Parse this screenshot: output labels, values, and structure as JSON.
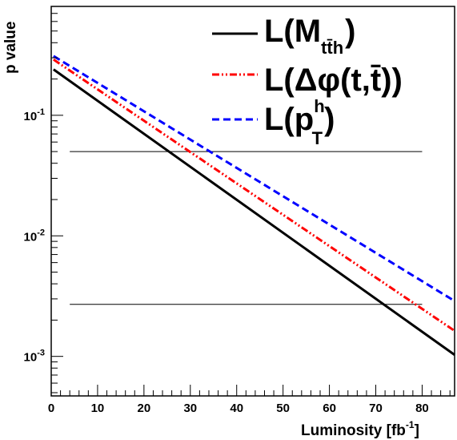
{
  "chart_data": {
    "type": "line",
    "xlabel": "Luminosity [fb",
    "xlabel_sup": "-1",
    "xlabel_close": "]",
    "ylabel": "p value",
    "xlim": [
      0,
      87
    ],
    "ylim": [
      0.00047,
      0.8
    ],
    "yscale": "log",
    "grid": false,
    "legend_position": "top-right",
    "x_ticks": [
      0,
      10,
      20,
      30,
      40,
      50,
      60,
      70,
      80
    ],
    "y_ticks": [
      {
        "value": 0.1,
        "base": "10",
        "exp": "-1"
      },
      {
        "value": 0.01,
        "base": "10",
        "exp": "-2"
      },
      {
        "value": 0.001,
        "base": "10",
        "exp": "-3"
      }
    ],
    "series": [
      {
        "name": "L(M_tt̄h)",
        "style": "solid",
        "color": "#000000",
        "x": [
          0.5,
          87
        ],
        "y": [
          0.24,
          0.00103
        ]
      },
      {
        "name": "L(Δφ(t,t̄))",
        "style": "dashdot",
        "color": "#ff0000",
        "x": [
          0.5,
          87
        ],
        "y": [
          0.29,
          0.00163
        ]
      },
      {
        "name": "L(p_T^h)",
        "style": "dashed",
        "color": "#0000ff",
        "x": [
          0.5,
          87
        ],
        "y": [
          0.31,
          0.00288
        ]
      }
    ],
    "reference_lines": [
      {
        "y": 0.05,
        "x": [
          4,
          80
        ]
      },
      {
        "y": 0.0027,
        "x": [
          4,
          80
        ]
      }
    ],
    "legend": [
      {
        "main": "L(M",
        "sub": "tt̄h",
        "close": ")"
      },
      {
        "main": "L(Δφ(t,t̄))"
      },
      {
        "main": "L(p",
        "sup": "h",
        "sub": "T",
        "close": ")"
      }
    ]
  }
}
